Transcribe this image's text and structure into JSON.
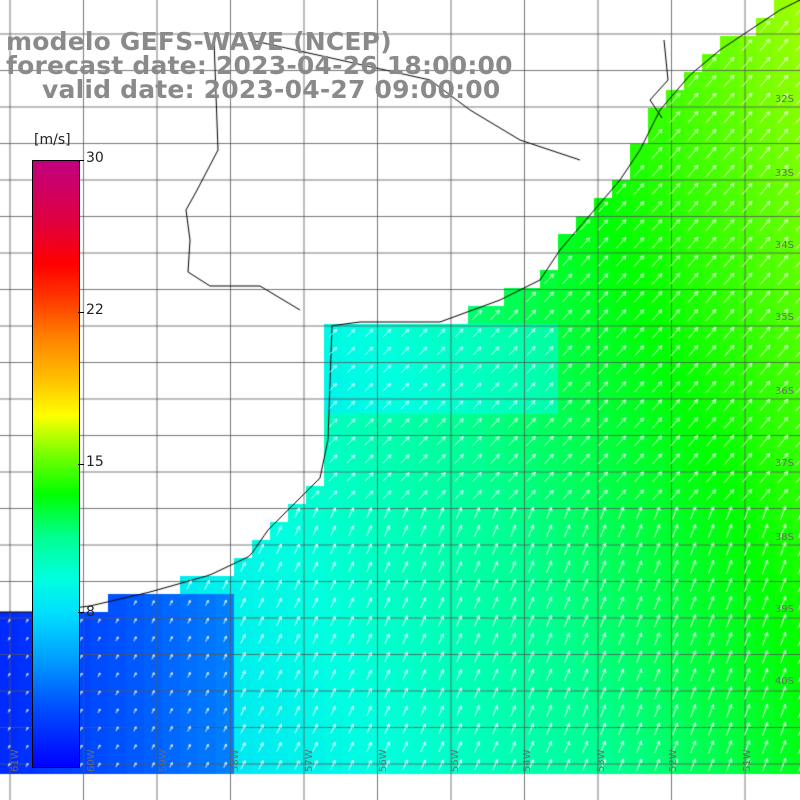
{
  "title": {
    "line1": "modelo GEFS-WAVE (NCEP)",
    "line2": "forecast date: 2023-04-26 18:00:00",
    "line3": "valid date: 2023-04-27 09:00:00"
  },
  "colorbar": {
    "unit": "[m/s]",
    "ticks": [
      "30",
      "22",
      "15",
      "8"
    ],
    "tick_values": [
      30,
      22,
      15,
      8
    ],
    "min": 0,
    "max": 30,
    "colors": [
      "#0000ff",
      "#00a0ff",
      "#00ffe0",
      "#00ff00",
      "#ffff00",
      "#ff8000",
      "#ff0000",
      "#c00080"
    ]
  },
  "map": {
    "land_color": "#ffffff",
    "coast_color": "#000000",
    "grid_color": "#555555",
    "arrow_color": "#ffffff",
    "lat_labels": [
      "32S",
      "33S",
      "34S",
      "35S",
      "36S",
      "37S",
      "38S",
      "39S",
      "40S"
    ],
    "lon_labels": [
      "61W",
      "60W",
      "59W",
      "58W",
      "57W",
      "56W",
      "55W",
      "54W",
      "53W",
      "52W",
      "51W"
    ],
    "prevailing_wind_direction": "northeast"
  }
}
